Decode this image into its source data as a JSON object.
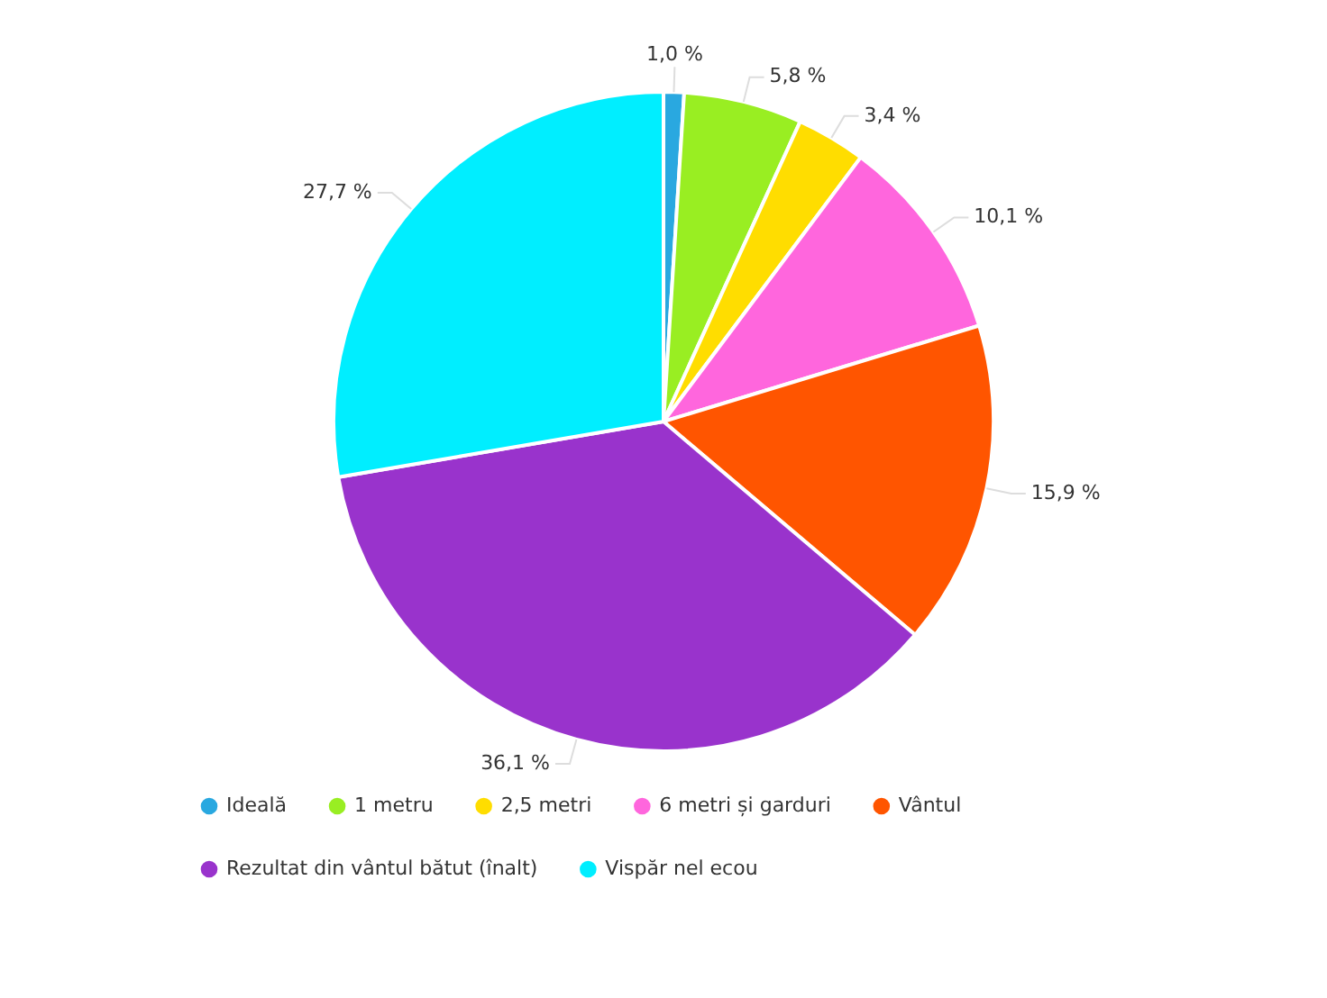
{
  "chart_data": {
    "type": "pie",
    "categories": [
      "Ideală",
      "1 metru",
      "2,5 metri",
      "6 metri și garduri",
      "Vântul",
      "Rezultat din vântul bătut (înalt)",
      "Vispăr nel ecou"
    ],
    "values": [
      1.0,
      5.8,
      3.4,
      10.1,
      15.9,
      36.1,
      27.7
    ],
    "value_labels": [
      "1,0 %",
      "5,8 %",
      "3,4 %",
      "10,1 %",
      "15,9 %",
      "36,1 %",
      "27,7 %"
    ],
    "colors": [
      "#29a8e0",
      "#99ee22",
      "#ffdd00",
      "#ff66dd",
      "#ff5500",
      "#9933cc",
      "#00eeff"
    ],
    "legend": "bottom"
  }
}
